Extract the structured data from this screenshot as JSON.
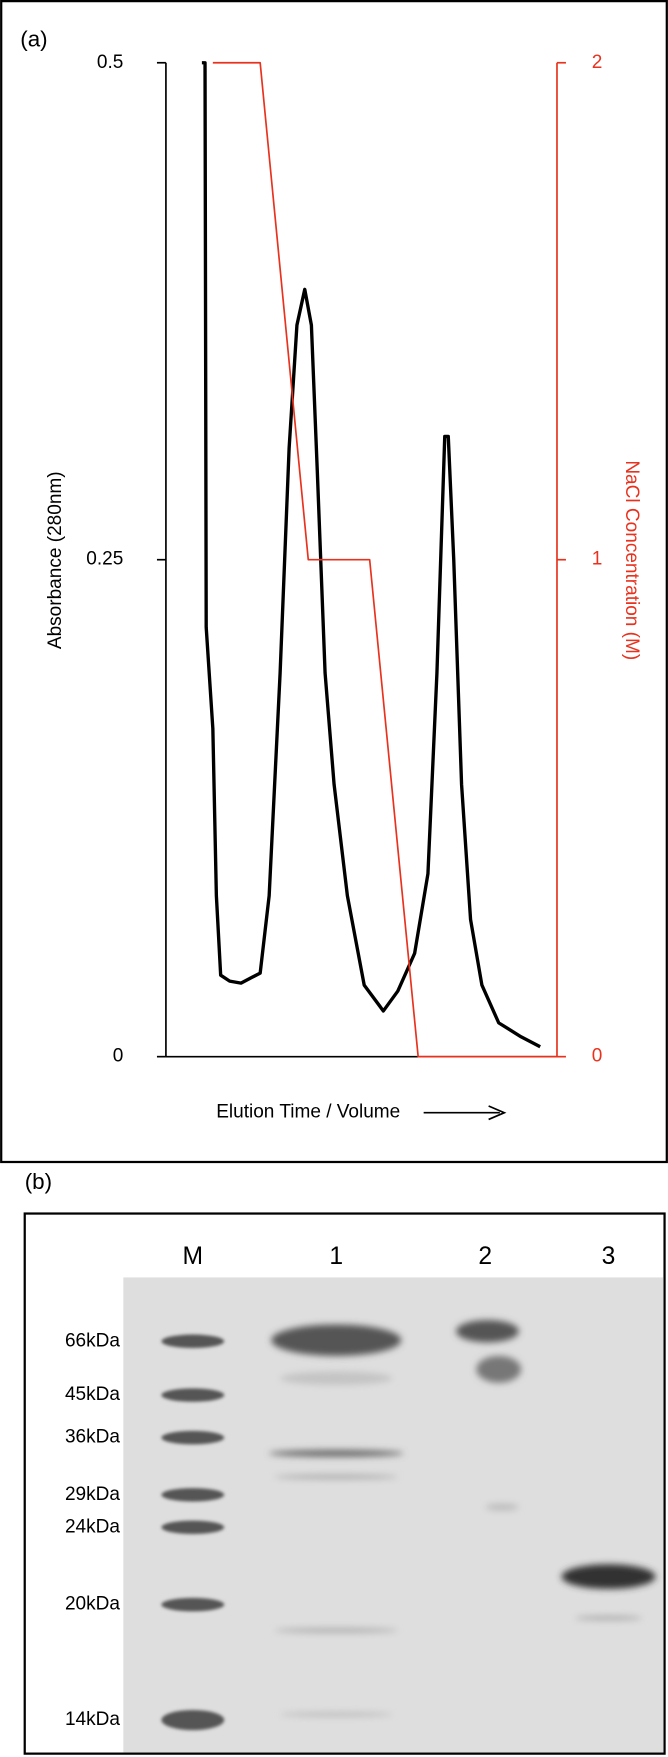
{
  "chart_data": {
    "type": "line",
    "panel_label": "(a)",
    "xlabel": "Elution Time / Volume",
    "ylabel": "Absorbance (280nm)",
    "y2label": "NaCl Concentration (M)",
    "xlim": [
      0,
      100
    ],
    "ylim": [
      0,
      0.5
    ],
    "yticks": [
      0,
      0.25,
      0.5
    ],
    "y2lim": [
      0,
      2
    ],
    "y2ticks": [
      0,
      1,
      2
    ],
    "series": [
      {
        "name": "Absorbance (280nm)",
        "color": "#000000",
        "x": [
          9.2,
          10.0,
          10.3,
          12.0,
          12.9,
          14.0,
          16.3,
          19.2,
          22.1,
          24.1,
          26.4,
          29.2,
          31.5,
          33.5,
          35.5,
          37.2,
          38.7,
          40.7,
          43.0,
          46.4,
          50.7,
          55.6,
          59.3,
          63.6,
          67.0,
          69.3,
          71.3,
          72.2,
          73.6,
          75.6,
          77.9,
          80.8,
          85.1,
          90.8,
          95.7
        ],
        "values": [
          0.5,
          0.5,
          0.216,
          0.165,
          0.081,
          0.041,
          0.038,
          0.037,
          0.04,
          0.042,
          0.081,
          0.193,
          0.306,
          0.368,
          0.386,
          0.368,
          0.295,
          0.193,
          0.137,
          0.081,
          0.036,
          0.023,
          0.033,
          0.052,
          0.092,
          0.193,
          0.312,
          0.312,
          0.25,
          0.137,
          0.069,
          0.036,
          0.017,
          0.01,
          0.005
        ]
      },
      {
        "name": "NaCl Concentration (M)",
        "color": "#e8321e",
        "axis": "y2",
        "x": [
          12.0,
          24.1,
          36.4,
          52.1,
          64.5,
          100
        ],
        "values": [
          2,
          2,
          1,
          1,
          0,
          0
        ]
      }
    ]
  },
  "gel": {
    "panel_label": "(b)",
    "lanes": [
      "M",
      "1",
      "2",
      "3"
    ],
    "markers": [
      "66kDa",
      "45kDa",
      "36kDa",
      "29kDa",
      "24kDa",
      "20kDa",
      "14kDa"
    ]
  }
}
